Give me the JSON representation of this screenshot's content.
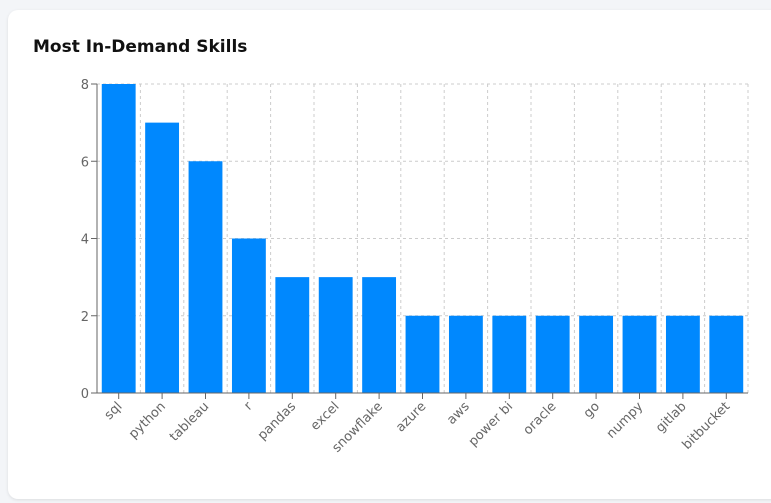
{
  "card": {
    "title": "Most In-Demand Skills"
  },
  "colors": {
    "bar": "#0088fe",
    "grid": "#cccccc",
    "axis": "#666666"
  },
  "chart_data": {
    "type": "bar",
    "categories": [
      "sql",
      "python",
      "tableau",
      "r",
      "pandas",
      "excel",
      "snowflake",
      "azure",
      "aws",
      "power bi",
      "oracle",
      "go",
      "numpy",
      "gitlab",
      "bitbucket"
    ],
    "values": [
      8,
      7,
      6,
      4,
      3,
      3,
      3,
      2,
      2,
      2,
      2,
      2,
      2,
      2,
      2
    ],
    "title": "Most In-Demand Skills",
    "xlabel": "",
    "ylabel": "",
    "ylim": [
      0,
      8
    ],
    "yticks": [
      0,
      2,
      4,
      6,
      8
    ],
    "grid": true,
    "legend": "none"
  }
}
